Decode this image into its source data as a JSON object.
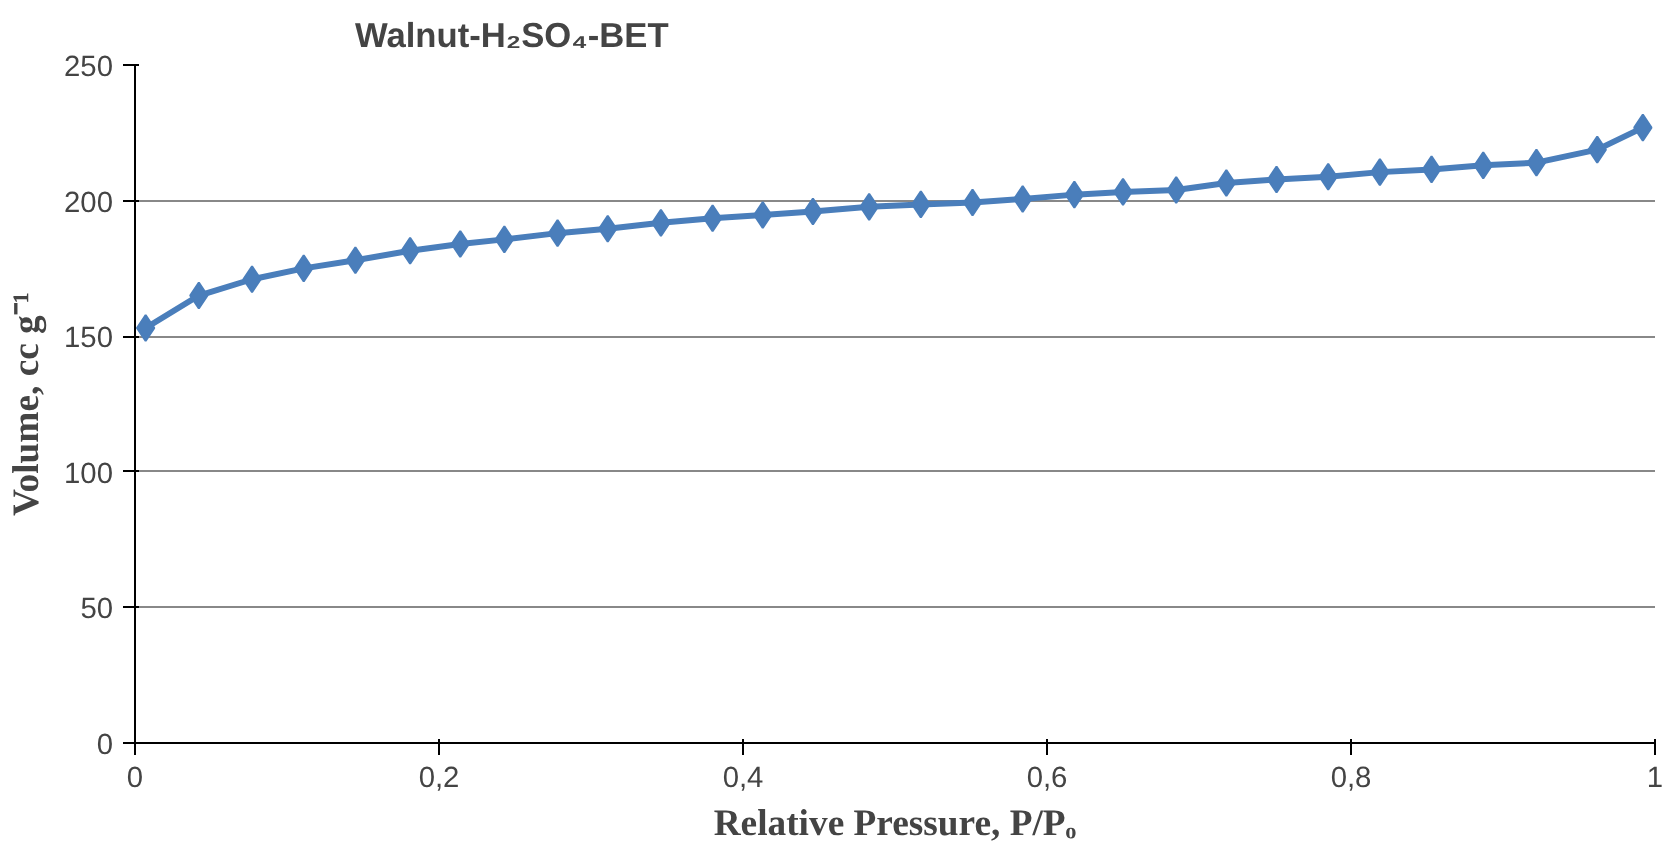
{
  "chart_data": {
    "type": "line",
    "title": "Walnut-H₂SO₄-BET",
    "xlabel": "Relative Pressure, P/Pₒ",
    "ylabel": "Volume, cc g⁻¹",
    "x": [
      0.007,
      0.042,
      0.077,
      0.111,
      0.145,
      0.181,
      0.214,
      0.243,
      0.278,
      0.311,
      0.346,
      0.38,
      0.413,
      0.446,
      0.483,
      0.517,
      0.551,
      0.584,
      0.618,
      0.65,
      0.685,
      0.718,
      0.751,
      0.785,
      0.819,
      0.853,
      0.887,
      0.922,
      0.962,
      0.992
    ],
    "series": [
      {
        "color": "#4a7ebb",
        "values": [
          153,
          165,
          171,
          175,
          178,
          181.5,
          184,
          185.7,
          188,
          189.6,
          191.8,
          193.5,
          194.7,
          196,
          197.7,
          198.6,
          199.3,
          200.6,
          202.2,
          203.2,
          203.9,
          206.5,
          207.8,
          208.8,
          210.5,
          211.5,
          213,
          214,
          218.8,
          226.9
        ]
      }
    ],
    "xlim": [
      0,
      1
    ],
    "xticks": [
      0,
      {
        "value": 0.2,
        "label": "0,2"
      },
      {
        "value": 0.4,
        "label": "0,4"
      },
      {
        "value": 0.6,
        "label": "0,6"
      },
      {
        "value": 0.8,
        "label": "0,8"
      },
      1
    ],
    "ylim": [
      0,
      250
    ],
    "yticks": [
      0,
      50,
      100,
      150,
      200,
      250
    ],
    "grid": "y",
    "marker": "diamond",
    "line_style": "solid"
  }
}
